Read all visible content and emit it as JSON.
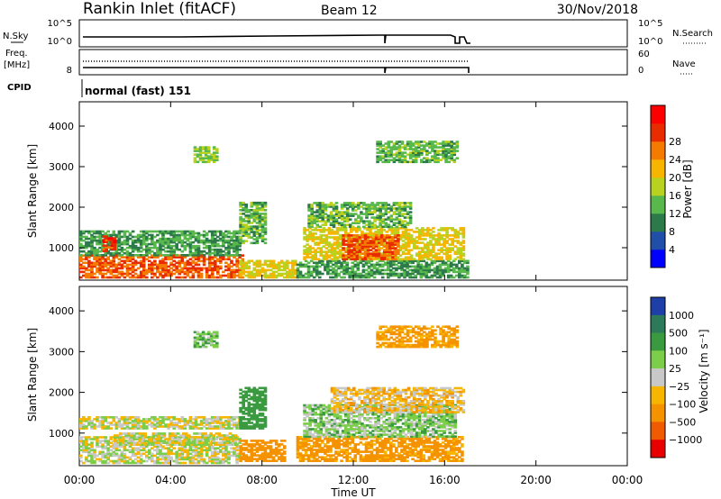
{
  "header": {
    "station": "Rankin Inlet (fitACF)",
    "beam": "Beam 12",
    "date": "30/Nov/2018"
  },
  "strips": {
    "nsky_label": "N.Sky",
    "nsky_ticks": [
      "10^5",
      "10^0"
    ],
    "nsearch_label": "N.Search",
    "nsearch_ticks": [
      "10^5",
      "10^0"
    ],
    "freq_label_top": "Freq.",
    "freq_label_unit": "[MHz]",
    "freq_tick": "8",
    "nave_label": "Nave",
    "nave_ticks": [
      "60",
      "0"
    ],
    "cpid_label": "CPID",
    "cpid_value": "normal (fast) 151"
  },
  "chart_data": [
    {
      "type": "heatmap",
      "name": "power-panel",
      "ylabel": "Slant Range [km]",
      "xlabel": "Time UT",
      "x_ticks": [
        "00:00",
        "04:00",
        "08:00",
        "12:00",
        "16:00",
        "20:00",
        "00:00"
      ],
      "y_ticks": [
        "1000",
        "2000",
        "3000",
        "4000"
      ],
      "ylim": [
        200,
        4600
      ],
      "xlim_hours": [
        0,
        24
      ],
      "colorbar": {
        "label": "Power [dB]",
        "ticks": [
          "4",
          "8",
          "12",
          "16",
          "20",
          "24",
          "28"
        ],
        "colors": [
          "#0000ff",
          "#1f4fa8",
          "#2c7a4a",
          "#58b84c",
          "#b9d21f",
          "#f7b500",
          "#f57b00",
          "#e92c00",
          "#ff0000"
        ]
      },
      "regions": [
        {
          "t0": 0.0,
          "t1": 7.2,
          "r0": 250,
          "r1": 800,
          "value": 26
        },
        {
          "t0": 0.0,
          "t1": 7.0,
          "r0": 800,
          "r1": 1400,
          "value": 10
        },
        {
          "t0": 1.0,
          "t1": 1.6,
          "r0": 900,
          "r1": 1300,
          "value": 28
        },
        {
          "t0": 7.0,
          "t1": 9.5,
          "r0": 250,
          "r1": 700,
          "value": 18
        },
        {
          "t0": 7.0,
          "t1": 8.2,
          "r0": 1100,
          "r1": 2100,
          "value": 12
        },
        {
          "t0": 9.5,
          "t1": 17.0,
          "r0": 250,
          "r1": 700,
          "value": 10
        },
        {
          "t0": 9.8,
          "t1": 16.8,
          "r0": 700,
          "r1": 1500,
          "value": 18
        },
        {
          "t0": 11.5,
          "t1": 14.0,
          "r0": 700,
          "r1": 1300,
          "value": 26
        },
        {
          "t0": 10.0,
          "t1": 14.5,
          "r0": 1500,
          "r1": 2100,
          "value": 12
        },
        {
          "t0": 5.0,
          "t1": 6.0,
          "r0": 3100,
          "r1": 3500,
          "value": 14
        },
        {
          "t0": 13.0,
          "t1": 16.5,
          "r0": 3100,
          "r1": 3600,
          "value": 12
        }
      ]
    },
    {
      "type": "heatmap",
      "name": "velocity-panel",
      "ylabel": "Slant Range [km]",
      "xlabel": "Time UT",
      "x_ticks": [
        "00:00",
        "04:00",
        "08:00",
        "12:00",
        "16:00",
        "20:00",
        "00:00"
      ],
      "y_ticks": [
        "1000",
        "2000",
        "3000",
        "4000"
      ],
      "ylim": [
        200,
        4600
      ],
      "xlim_hours": [
        0,
        24
      ],
      "colorbar": {
        "label": "Velocity [m s⁻¹]",
        "ticks": [
          "1000",
          "500",
          "100",
          "25",
          "−25",
          "−100",
          "−500",
          "−1000"
        ],
        "colors": [
          "#1f3fa8",
          "#2d7a5a",
          "#3a9a40",
          "#7ccd4a",
          "#c8c8c8",
          "#f7b500",
          "#f59200",
          "#f05a00",
          "#e80000"
        ]
      },
      "regions": [
        {
          "t0": 0.0,
          "t1": 7.0,
          "r0": 250,
          "r1": 900,
          "value": 10
        },
        {
          "t0": 1.5,
          "t1": 6.8,
          "r0": 700,
          "r1": 1000,
          "value": 0
        },
        {
          "t0": 0.0,
          "t1": 7.0,
          "r0": 1100,
          "r1": 1400,
          "value": 0
        },
        {
          "t0": 7.0,
          "t1": 9.0,
          "r0": 300,
          "r1": 800,
          "value": -200
        },
        {
          "t0": 7.0,
          "t1": 8.2,
          "r0": 1100,
          "r1": 2100,
          "value": 300
        },
        {
          "t0": 9.5,
          "t1": 16.8,
          "r0": 300,
          "r1": 900,
          "value": -150
        },
        {
          "t0": 9.8,
          "t1": 16.5,
          "r0": 900,
          "r1": 1700,
          "value": 60
        },
        {
          "t0": 11.0,
          "t1": 16.8,
          "r0": 1500,
          "r1": 2100,
          "value": -60
        },
        {
          "t0": 5.0,
          "t1": 6.0,
          "r0": 3100,
          "r1": 3500,
          "value": 80
        },
        {
          "t0": 13.0,
          "t1": 16.5,
          "r0": 3100,
          "r1": 3600,
          "value": -120
        }
      ]
    }
  ]
}
